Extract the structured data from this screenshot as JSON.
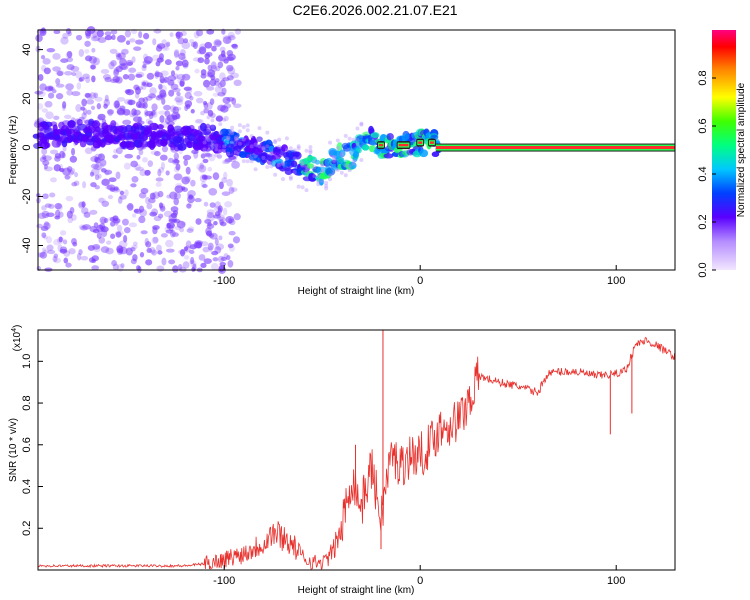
{
  "title": "C2E6.2026.002.21.07.E21",
  "colors": {
    "signal_line": "#e8302c",
    "scatter_dot": "#7a3cff",
    "band_core": "#ff2a2a",
    "band_edge": "#2aff55"
  },
  "chart_data": [
    {
      "type": "heatmap",
      "title": "",
      "xlabel": "Height of straight line (km)",
      "ylabel": "Frequency (Hz)",
      "xlim": [
        -195,
        130
      ],
      "ylim": [
        -50,
        48
      ],
      "xticks": [
        -100,
        0,
        100
      ],
      "xtick_labels": [
        "-100",
        "0",
        "100"
      ],
      "yticks": [
        -40,
        -20,
        0,
        20,
        40
      ],
      "ytick_labels": [
        "-40",
        "-20",
        "0",
        "20",
        "40"
      ],
      "ridge": {
        "x": [
          -195,
          -170,
          -150,
          -130,
          -110,
          -95,
          -80,
          -70,
          -60,
          -50,
          -45,
          -40,
          -35,
          -30,
          -25,
          -20,
          -15,
          -10,
          -5,
          0,
          5,
          10,
          130
        ],
        "y": [
          5,
          6,
          5,
          4,
          4,
          2,
          -1,
          -4,
          -8,
          -10,
          -6,
          -4,
          -3,
          1,
          4,
          1,
          0,
          1,
          1,
          2,
          2,
          0,
          0
        ]
      },
      "noise_region_x": [
        -195,
        -105
      ],
      "colorbar": {
        "label": "Normalized spectral amplitude",
        "range": [
          0.0,
          1.0
        ],
        "ticks": [
          0.0,
          0.2,
          0.4,
          0.6,
          0.8
        ],
        "tick_labels": [
          "0.0",
          "0.2",
          "0.4",
          "0.6",
          "0.8"
        ]
      }
    },
    {
      "type": "line",
      "title": "",
      "xlabel": "Height of straight line (km)",
      "ylabel": "SNR (10 * v/v)",
      "y_multiplier": "(x10",
      "y_multiplier_exp": "4",
      "y_multiplier_close": ")",
      "xlim": [
        -195,
        130
      ],
      "ylim": [
        0,
        1.15
      ],
      "xticks": [
        -100,
        0,
        100
      ],
      "xtick_labels": [
        "-100",
        "0",
        "100"
      ],
      "yticks": [
        0.2,
        0.4,
        0.6,
        0.8,
        1.0
      ],
      "ytick_labels": [
        "0.2",
        "0.4",
        "0.6",
        "0.8",
        "1.0"
      ],
      "series": [
        {
          "name": "SNR",
          "x": [
            -195,
            -180,
            -160,
            -140,
            -120,
            -110,
            -100,
            -90,
            -80,
            -75,
            -70,
            -65,
            -60,
            -55,
            -50,
            -45,
            -40,
            -35,
            -30,
            -25,
            -20,
            -15,
            -10,
            -5,
            0,
            5,
            10,
            20,
            25,
            30,
            40,
            50,
            60,
            65,
            70,
            80,
            90,
            100,
            105,
            110,
            115,
            120,
            125,
            130
          ],
          "y": [
            0.02,
            0.02,
            0.02,
            0.02,
            0.02,
            0.03,
            0.05,
            0.08,
            0.13,
            0.18,
            0.16,
            0.12,
            0.06,
            0.04,
            0.03,
            0.08,
            0.2,
            0.45,
            0.3,
            0.5,
            0.25,
            0.55,
            0.5,
            0.55,
            0.55,
            0.6,
            0.68,
            0.72,
            0.82,
            0.93,
            0.9,
            0.88,
            0.85,
            0.94,
            0.95,
            0.95,
            0.93,
            0.94,
            0.96,
            1.08,
            1.1,
            1.08,
            1.05,
            1.02
          ]
        }
      ],
      "spikes": [
        {
          "x": -19,
          "y": 1.16
        },
        {
          "x": -20,
          "y": 0.1
        },
        {
          "x": -33,
          "y": 0.6
        },
        {
          "x": 97,
          "y": 0.65
        },
        {
          "x": 108,
          "y": 0.75
        }
      ]
    }
  ]
}
